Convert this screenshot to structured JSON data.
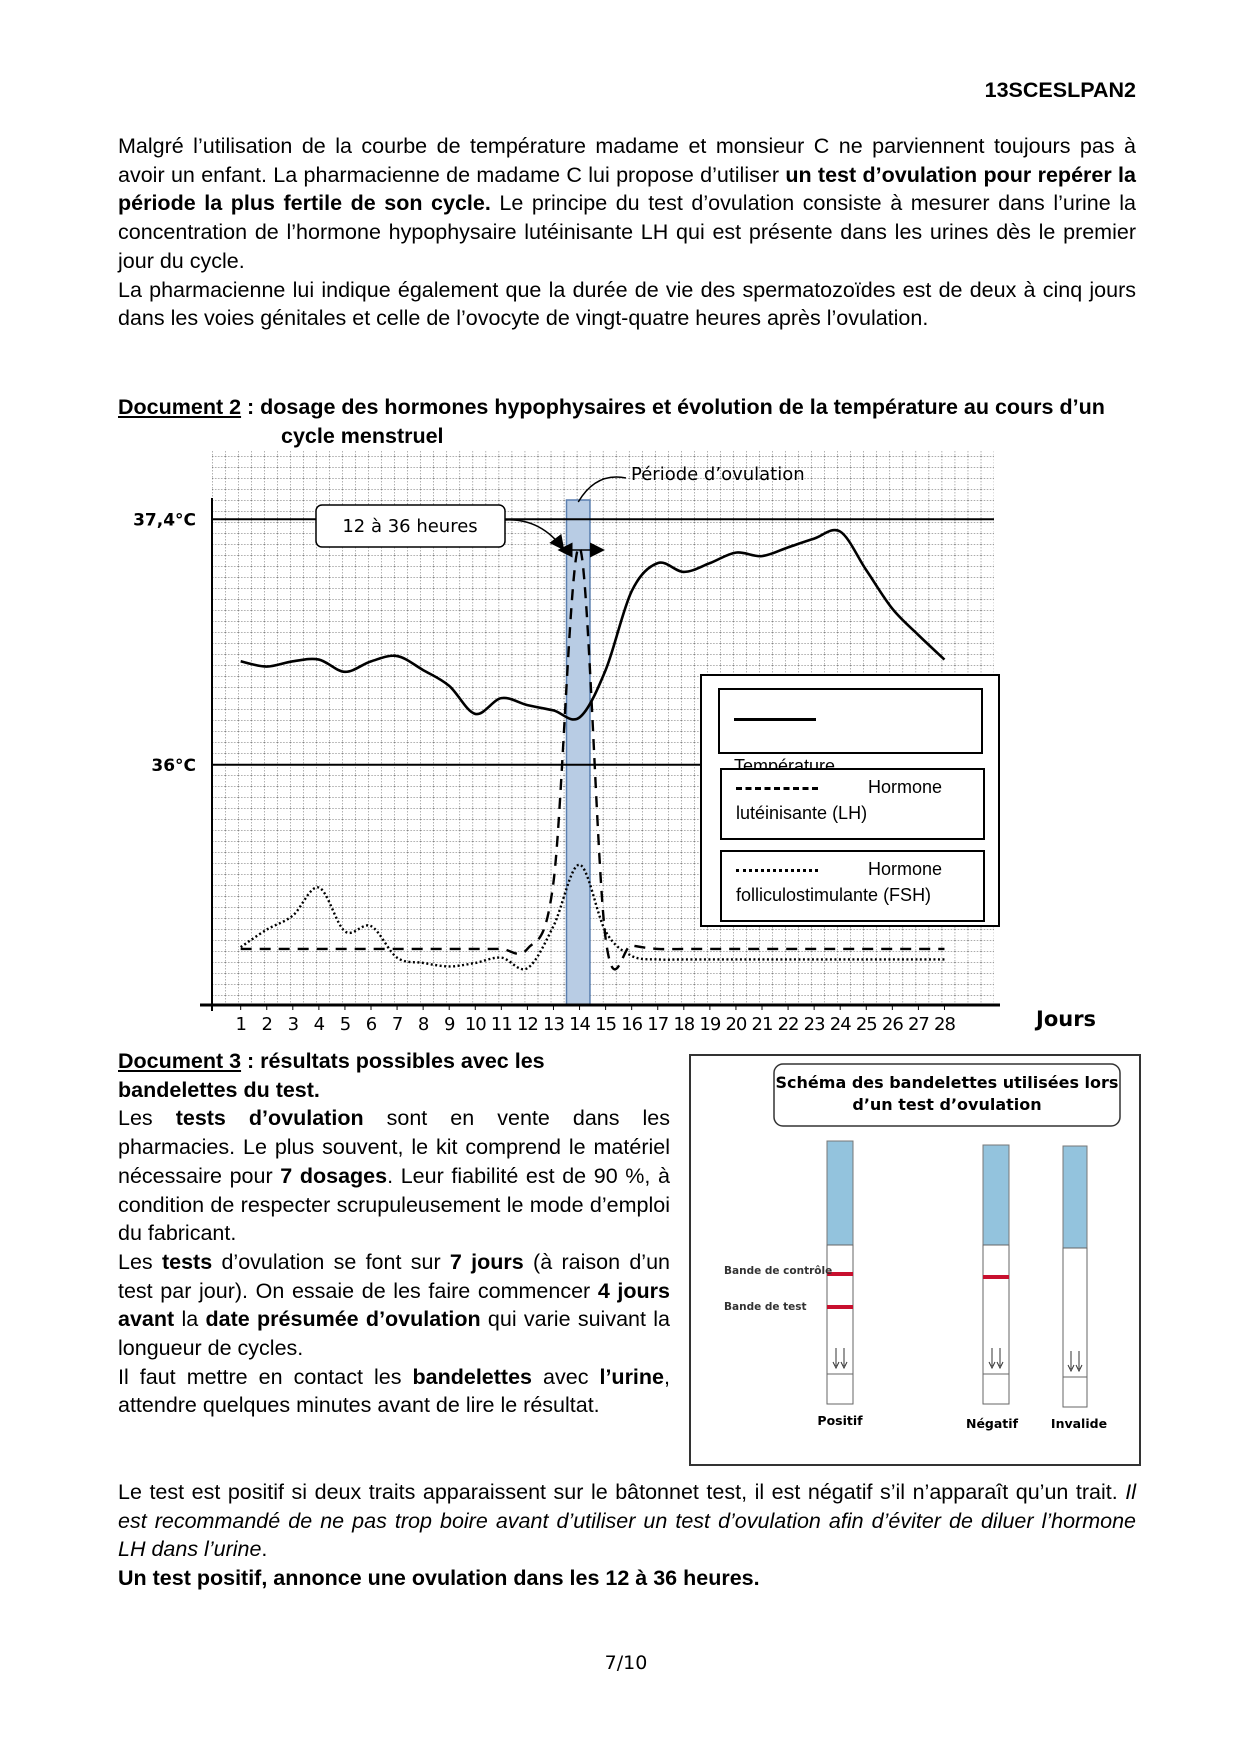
{
  "header": {
    "code": "13SCESLPAN2"
  },
  "intro": [
    [
      "Malgré l’utilisation de la courbe de température madame et monsieur C ne parviennent toujours pas à avoir un enfant. La pharmacienne de madame C lui propose d’utiliser ",
      {
        "text": "un test d’ovulation pour repérer la période la plus fertile de son cycle.",
        "style": "bold"
      },
      " Le principe du test d’ovulation consiste à mesurer dans l’urine la concentration de l’hormone hypophysaire lutéinisante LH qui est présente dans les urines dès le premier jour du cycle."
    ],
    [
      "La pharmacienne lui indique également que la durée de vie des spermatozoïdes est de deux à cinq jours dans les voies génitales et celle de l’ovocyte de vingt-quatre heures après l’ovulation."
    ]
  ],
  "document2": {
    "label": "Document 2",
    "title": " : dosage des hormones hypophysaires et évolution de la température au cours d’un cycle menstruel"
  },
  "chart_data": {
    "type": "line",
    "x_label": "Jours",
    "x": [
      1,
      2,
      3,
      4,
      5,
      6,
      7,
      8,
      9,
      10,
      11,
      12,
      13,
      14,
      15,
      16,
      17,
      18,
      19,
      20,
      21,
      22,
      23,
      24,
      25,
      26,
      27,
      28
    ],
    "xlim": [
      -0.1,
      29.9
    ],
    "xticks": [
      1,
      2,
      3,
      4,
      5,
      6,
      7,
      8,
      9,
      10,
      11,
      12,
      13,
      14,
      15,
      16,
      17,
      18,
      19,
      20,
      21,
      22,
      23,
      24,
      25,
      26,
      27,
      28
    ],
    "ylim": [
      34.63,
      37.51
    ],
    "yticks": [
      {
        "value": 37.4,
        "label": "37,4°C"
      },
      {
        "value": 36,
        "label": "36°C"
      }
    ],
    "grid": true,
    "legend": "right",
    "highlight": {
      "from": 13.5,
      "to": 14.4,
      "label": "Période d’ovulation"
    },
    "annotation": "12 à 36 heures",
    "series": [
      {
        "name": "Température",
        "color": "#000000",
        "style": "solid",
        "values": [
          36.59,
          36.56,
          36.59,
          36.6,
          36.53,
          36.59,
          36.62,
          36.54,
          36.45,
          36.29,
          36.38,
          36.34,
          36.31,
          36.27,
          36.54,
          36.99,
          37.15,
          37.1,
          37.15,
          37.21,
          37.19,
          37.24,
          37.29,
          37.33,
          37.11,
          36.89,
          36.74,
          36.6
        ]
      },
      {
        "name": "Hormone lutéinisante (LH)",
        "color": "#000000",
        "style": "dashed",
        "values": [
          34.95,
          34.95,
          34.95,
          34.95,
          34.95,
          34.95,
          34.95,
          34.95,
          34.95,
          34.95,
          34.95,
          34.95,
          35.33,
          37.24,
          35.01,
          34.97,
          34.95,
          34.95,
          34.95,
          34.95,
          34.95,
          34.95,
          34.95,
          34.95,
          34.95,
          34.95,
          34.95,
          34.95
        ]
      },
      {
        "name": "Hormone folliculostimulante (FSH)",
        "color": "#000000",
        "style": "dotted",
        "values": [
          34.96,
          35.06,
          35.14,
          35.3,
          35.05,
          35.08,
          34.9,
          34.87,
          34.85,
          34.87,
          34.9,
          34.84,
          35.08,
          35.43,
          35.05,
          34.91,
          34.89,
          34.89,
          34.89,
          34.89,
          34.89,
          34.89,
          34.89,
          34.89,
          34.89,
          34.89,
          34.89,
          34.89
        ]
      }
    ]
  },
  "document3": {
    "label": "Document 3",
    "title": " : résultats possibles avec les bandelettes du test.",
    "paragraphs": [
      [
        "Les ",
        {
          "text": "tests d’ovulation",
          "style": "bold"
        },
        " sont en vente dans les pharmacies. Le plus souvent, le kit comprend le matériel nécessaire pour ",
        {
          "text": "7 dosages",
          "style": "bold"
        },
        ". Leur fiabilité est de 90 %, à condition de respecter scrupuleusement le mode d’emploi du fabricant."
      ],
      [
        "Les ",
        {
          "text": "tests",
          "style": "bold"
        },
        " d’ovulation se font sur ",
        {
          "text": "7 jours",
          "style": "bold"
        },
        " (à raison d’un test par jour). On essaie de les faire commencer ",
        {
          "text": "4 jours avant",
          "style": "bold"
        },
        " la ",
        {
          "text": "date présumée d’ovulation",
          "style": "bold"
        },
        " qui varie suivant la longueur de cycles."
      ],
      [
        "Il faut mettre en contact les ",
        {
          "text": "bandelettes",
          "style": "bold"
        },
        " avec ",
        {
          "text": "l’urine",
          "style": "bold"
        },
        ", attendre quelques minutes avant de lire le résultat."
      ]
    ],
    "conclusion": [
      [
        "Le test est positif si deux traits apparaissent sur le bâtonnet test, il est négatif s’il n’apparaît qu’un trait. ",
        {
          "text": "Il est recommandé de ne pas trop boire avant d’utiliser un test d’ovulation afin d’éviter de diluer l’hormone LH dans l’urine",
          "style": "italic"
        },
        "."
      ],
      [
        {
          "text": "Un test positif, annonce une ovulation dans les 12 à 36 heures.",
          "style": "bold"
        }
      ]
    ]
  },
  "strips_figure": {
    "title": "Schéma des bandelettes utilisées lors d’un test d’ovulation",
    "band_labels": [
      "Bande de contrôle",
      "Bande de test"
    ],
    "strips": [
      "Positif",
      "Négatif",
      "Invalide"
    ]
  },
  "footer": {
    "page": "7/10"
  }
}
